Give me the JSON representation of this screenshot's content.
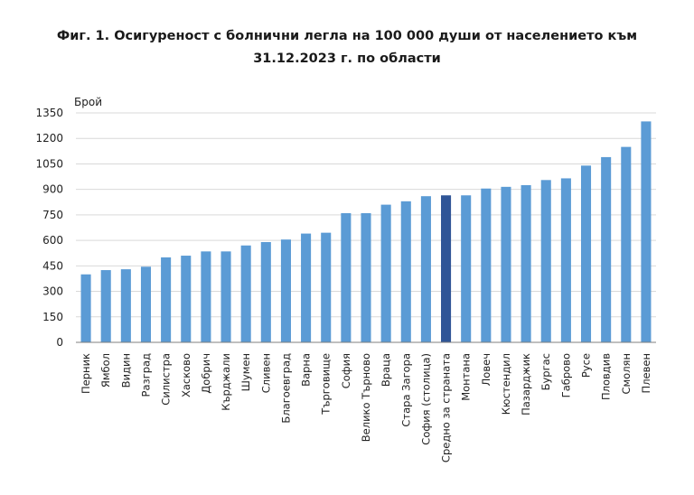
{
  "chart_data": {
    "type": "bar",
    "title_line1": "Фиг. 1. Осигуреност с болнични легла на 100 000 души от населението към",
    "title_line2": "31.12.2023 г. по области",
    "ylabel": "Брой",
    "xlabel": "",
    "ylim": [
      0,
      1350
    ],
    "yticks": [
      0,
      150,
      300,
      450,
      600,
      750,
      900,
      1050,
      1200,
      1350
    ],
    "grid": true,
    "legend": "none",
    "highlight_category": "Средно за страната",
    "colors": {
      "bar": "#5b9bd5",
      "highlight": "#2f5597",
      "grid": "#d9d9d9",
      "axis": "#7f7f7f"
    },
    "categories": [
      "Перник",
      "Ямбол",
      "Видин",
      "Разград",
      "Силистра",
      "Хасково",
      "Добрич",
      "Кърджали",
      "Шумен",
      "Сливен",
      "Благоевград",
      "Варна",
      "Търговище",
      "София",
      "Велико Търново",
      "Враца",
      "Стара Загора",
      "София (столица)",
      "Средно за страната",
      "Монтана",
      "Ловеч",
      "Кюстендил",
      "Пазарджик",
      "Бургас",
      "Габрово",
      "Русе",
      "Пловдив",
      "Смолян",
      "Плевен"
    ],
    "values": [
      400,
      425,
      430,
      445,
      500,
      510,
      535,
      535,
      570,
      590,
      605,
      640,
      645,
      760,
      760,
      810,
      830,
      860,
      865,
      865,
      905,
      915,
      925,
      955,
      965,
      1040,
      1090,
      1150,
      1300
    ]
  }
}
